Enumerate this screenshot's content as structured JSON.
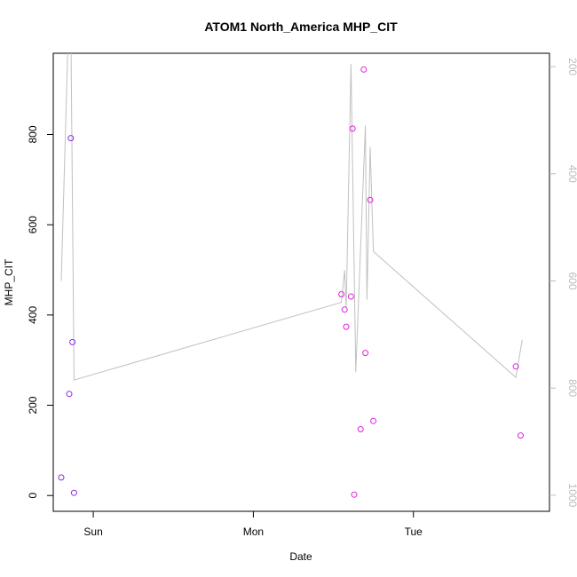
{
  "chart_data": {
    "type": "scatter",
    "title": "ATOM1 North_America MHP_CIT",
    "xlabel": "Date",
    "ylabel": "MHP_CIT",
    "x_axis": {
      "unit": "days since Saturday 00:00",
      "range": [
        0.75,
        3.85
      ],
      "ticks": [
        {
          "label": "Sun",
          "value": 1
        },
        {
          "label": "Mon",
          "value": 2
        },
        {
          "label": "Tue",
          "value": 3
        }
      ]
    },
    "y_axis_left": {
      "range": [
        -35,
        980
      ],
      "ticks": [
        0,
        200,
        400,
        600,
        800
      ]
    },
    "y_axis_right": {
      "reversed": true,
      "range": [
        1030,
        175
      ],
      "ticks": [
        200,
        400,
        600,
        800,
        1000
      ],
      "color": "#bbbbbb"
    },
    "series": [
      {
        "color": "#8a2be2",
        "points": [
          {
            "x": 0.8,
            "y": 40
          },
          {
            "x": 0.85,
            "y": 225
          },
          {
            "x": 0.86,
            "y": 792
          },
          {
            "x": 0.87,
            "y": 340
          },
          {
            "x": 0.88,
            "y": 6
          }
        ]
      },
      {
        "color": "#e020e0",
        "points": [
          {
            "x": 2.55,
            "y": 446
          },
          {
            "x": 2.57,
            "y": 412
          },
          {
            "x": 2.58,
            "y": 374
          },
          {
            "x": 2.61,
            "y": 441
          },
          {
            "x": 2.62,
            "y": 813
          },
          {
            "x": 2.63,
            "y": 2
          },
          {
            "x": 2.67,
            "y": 147
          },
          {
            "x": 2.69,
            "y": 944
          },
          {
            "x": 2.7,
            "y": 316
          },
          {
            "x": 2.73,
            "y": 655
          },
          {
            "x": 2.75,
            "y": 165
          },
          {
            "x": 3.64,
            "y": 286
          },
          {
            "x": 3.67,
            "y": 133
          }
        ]
      }
    ],
    "line": {
      "color": "#c0c0c0",
      "axis": "right",
      "points": [
        {
          "x": 0.8,
          "y": 600
        },
        {
          "x": 0.84,
          "y": 175
        },
        {
          "x": 0.86,
          "y": 120
        },
        {
          "x": 0.88,
          "y": 785
        },
        {
          "x": 2.55,
          "y": 640
        },
        {
          "x": 2.57,
          "y": 580
        },
        {
          "x": 2.58,
          "y": 650
        },
        {
          "x": 2.61,
          "y": 195
        },
        {
          "x": 2.64,
          "y": 770
        },
        {
          "x": 2.7,
          "y": 310
        },
        {
          "x": 2.71,
          "y": 635
        },
        {
          "x": 2.73,
          "y": 350
        },
        {
          "x": 2.75,
          "y": 545
        },
        {
          "x": 3.64,
          "y": 780
        },
        {
          "x": 3.68,
          "y": 710
        }
      ]
    }
  }
}
